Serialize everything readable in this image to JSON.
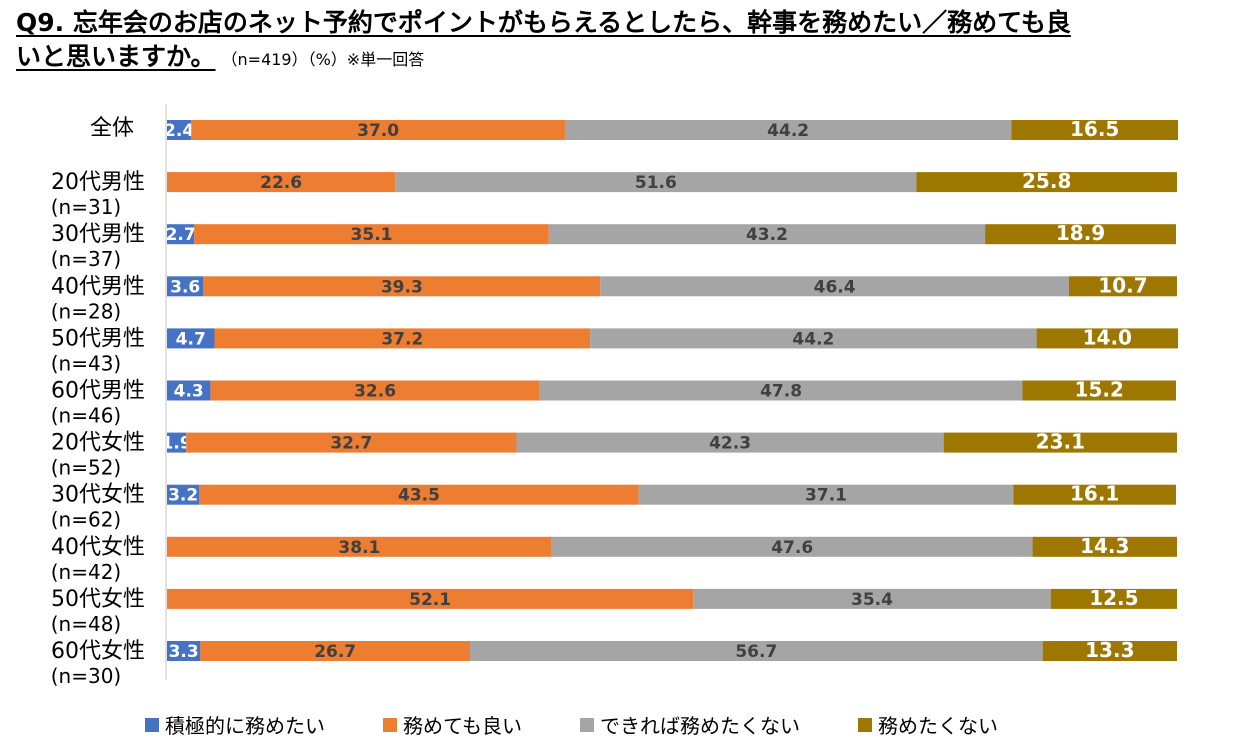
{
  "title": {
    "line1": "Q9. 忘年会のお店のネット予約でポイントがもらえるとしたら、幹事を務めたい／務めても良",
    "line2": "いと思いますか。",
    "note": "（n=419）（%）※単一回答"
  },
  "chart_data": {
    "type": "bar",
    "stacked": true,
    "orientation": "horizontal",
    "xlim": [
      0,
      100
    ],
    "categories": [
      {
        "label": "全体",
        "n": ""
      },
      {
        "label": "20代男性",
        "n": "(n=31)"
      },
      {
        "label": "30代男性",
        "n": "(n=37)"
      },
      {
        "label": "40代男性",
        "n": "(n=28)"
      },
      {
        "label": "50代男性",
        "n": "(n=43)"
      },
      {
        "label": "60代男性",
        "n": "(n=46)"
      },
      {
        "label": "20代女性",
        "n": "(n=52)"
      },
      {
        "label": "30代女性",
        "n": "(n=62)"
      },
      {
        "label": "40代女性",
        "n": "(n=42)"
      },
      {
        "label": "50代女性",
        "n": "(n=48)"
      },
      {
        "label": "60代女性",
        "n": "(n=30)"
      }
    ],
    "series": [
      {
        "name": "積極的に務めたい",
        "color": "#4472C4",
        "label_color": "#FFFFFF",
        "values": [
          2.4,
          0,
          2.7,
          3.6,
          4.7,
          4.3,
          1.9,
          3.2,
          0,
          0,
          3.3
        ]
      },
      {
        "name": "務めても良い",
        "color": "#ED7D31",
        "label_color": "#404040",
        "values": [
          37.0,
          22.6,
          35.1,
          39.3,
          37.2,
          32.6,
          32.7,
          43.5,
          38.1,
          52.1,
          26.7
        ]
      },
      {
        "name": "できれば務めたくない",
        "color": "#A5A5A5",
        "label_color": "#404040",
        "values": [
          44.2,
          51.6,
          43.2,
          46.4,
          44.2,
          47.8,
          42.3,
          37.1,
          47.6,
          35.4,
          56.7
        ]
      },
      {
        "name": "務めたくない",
        "color": "#9E7700",
        "label_color": "#FFFFFF",
        "values": [
          16.5,
          25.8,
          18.9,
          10.7,
          14.0,
          15.2,
          23.1,
          16.1,
          14.3,
          12.5,
          13.3
        ]
      }
    ],
    "legend_position": "bottom"
  }
}
